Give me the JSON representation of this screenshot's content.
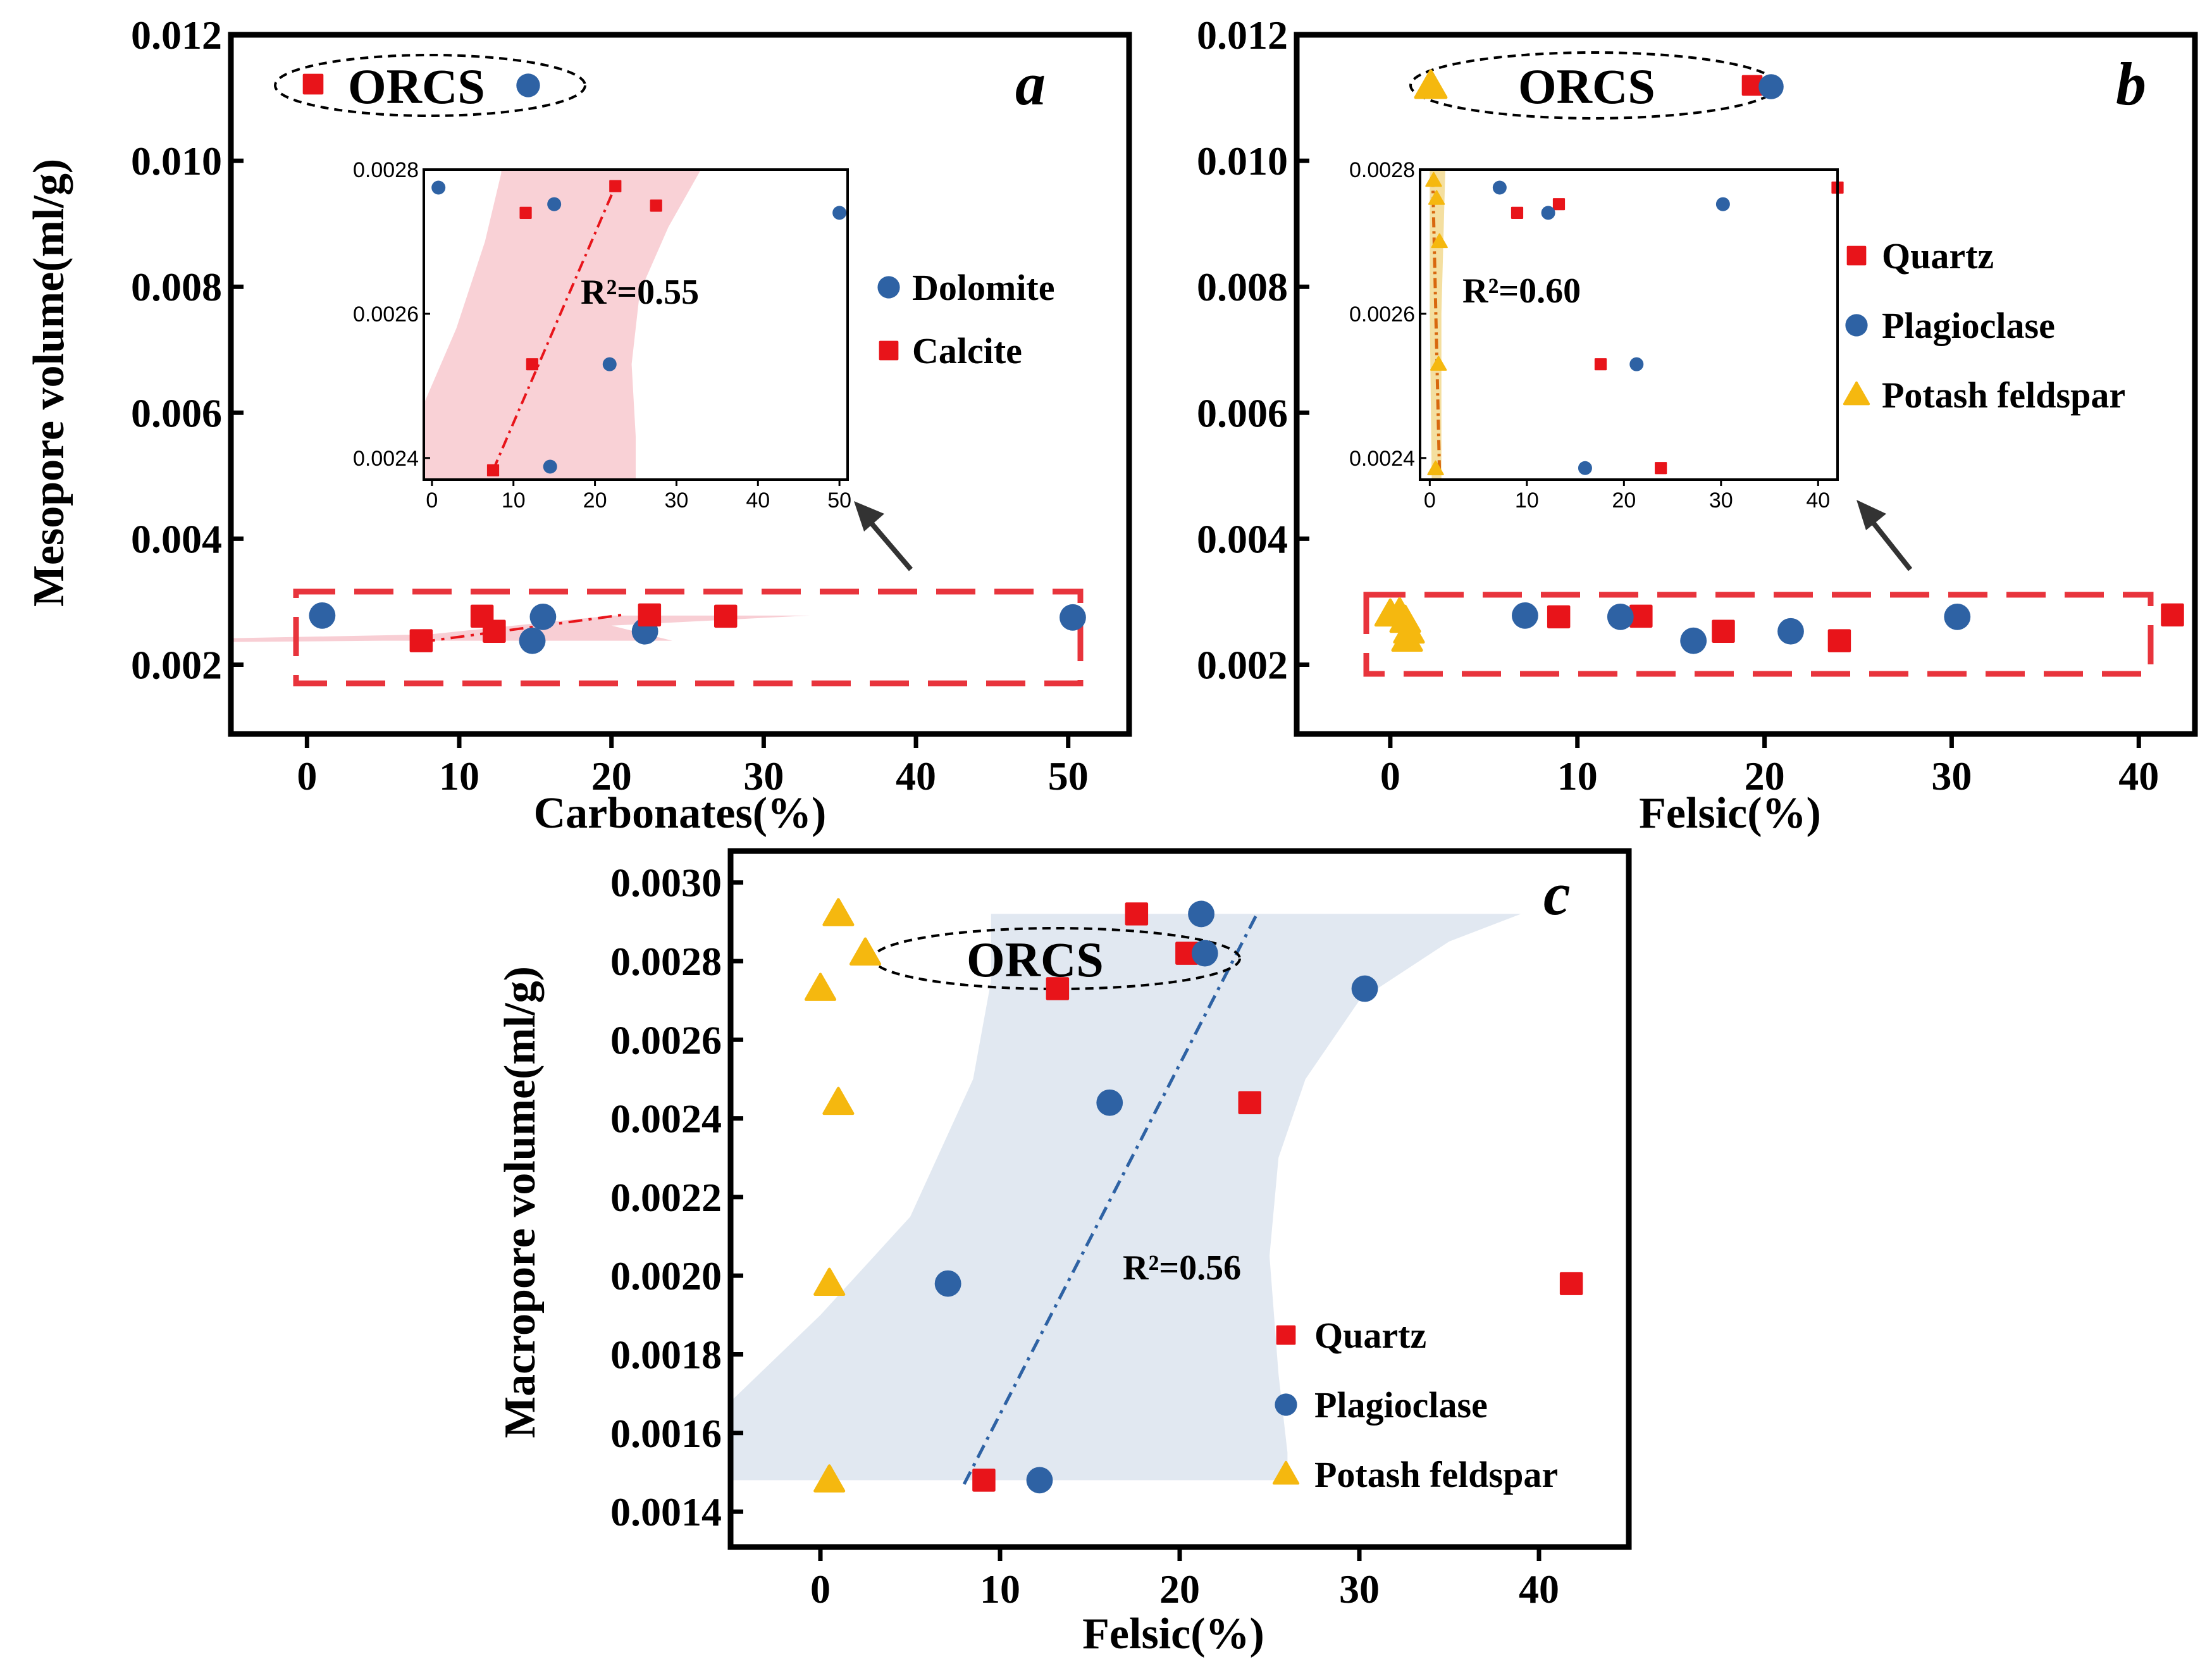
{
  "colors": {
    "quartz": "#e8141a",
    "calcite": "#e8141a",
    "dolomite": "#2e62a4",
    "plagioclase": "#2e62a4",
    "potash_feldspar": "#f5b80f",
    "band_red": "#f7c6cc",
    "band_blue": "#dce4ee",
    "band_yellow": "#f3dc96",
    "fit_red": "#e8141a",
    "fit_orange": "#d8680e",
    "fit_blue": "#2e62a4",
    "frame": "#000000",
    "highlight_box": "#e8343c"
  },
  "orcs_label": "ORCS",
  "chart_data": [
    {
      "id": "a",
      "panel_label": "a",
      "type": "scatter",
      "xlabel": "Carbonates(%)",
      "ylabel": "Mesopore volume(ml/g)",
      "xlim": [
        -5,
        54
      ],
      "ylim": [
        0.0009,
        0.012
      ],
      "xticks": [
        0,
        10,
        20,
        30,
        40,
        50
      ],
      "yticks": [
        0.002,
        0.004,
        0.006,
        0.008,
        0.01,
        0.012
      ],
      "ytick_labels": [
        "0.002",
        "0.004",
        "0.006",
        "0.008",
        "0.010",
        "0.012"
      ],
      "series": [
        {
          "name": "Dolomite",
          "marker": "circle",
          "color_key": "dolomite",
          "x": [
            1.0,
            15.5,
            14.8,
            22.2,
            50.3
          ],
          "y": [
            0.00278,
            0.00276,
            0.00238,
            0.00253,
            0.00275
          ]
        },
        {
          "name": "Calcite",
          "marker": "square",
          "color_key": "calcite",
          "x": [
            7.5,
            11.5,
            12.3,
            22.5,
            27.5
          ],
          "y": [
            0.00238,
            0.00277,
            0.00253,
            0.00279,
            0.00277
          ]
        }
      ],
      "orcs_markers": [
        "square",
        "circle"
      ],
      "inset": {
        "xlim": [
          -1,
          51
        ],
        "ylim": [
          0.00237,
          0.0028
        ],
        "xticks": [
          0,
          10,
          20,
          30,
          40,
          50
        ],
        "yticks": [
          0.0024,
          0.0026,
          0.0028
        ],
        "ytick_labels": [
          "0.0024",
          "0.0026",
          "0.0028"
        ],
        "series": [
          {
            "name": "Dolomite",
            "marker": "circle",
            "color_key": "dolomite",
            "x": [
              0.8,
              15.0,
              14.5,
              21.8,
              50.0
            ],
            "y": [
              0.002775,
              0.002752,
              0.002388,
              0.00253,
              0.00274
            ]
          },
          {
            "name": "Calcite",
            "marker": "square",
            "color_key": "calcite",
            "x": [
              7.5,
              11.5,
              12.3,
              22.5,
              27.5
            ],
            "y": [
              0.002383,
              0.00274,
              0.00253,
              0.002777,
              0.00275
            ]
          }
        ],
        "fit": {
          "x": [
            7.5,
            22.5
          ],
          "y": [
            0.002383,
            0.002777
          ],
          "color_key": "fit_red",
          "band_key": "band_red",
          "band_upper": [
            [
              0,
              0.002595
            ],
            [
              3,
              0.002665
            ],
            [
              6,
              0.00273
            ],
            [
              8.5,
              0.002775
            ],
            [
              8.5,
              0.0028
            ],
            [
              33,
              0.0028
            ],
            [
              28,
              0.0027
            ],
            [
              25,
              0.00262
            ],
            [
              24.5,
              0.00253
            ],
            [
              25,
              0.00242
            ],
            [
              25,
              0.00237
            ]
          ],
          "band_lower": [
            [
              0,
              0.00237
            ],
            [
              0,
              0.00244
            ]
          ]
        },
        "r2": "R²=0.55"
      },
      "main_fit": {
        "x": [
          7.5,
          21.0
        ],
        "y": [
          0.00236,
          0.0028
        ],
        "color_key": "fit_red"
      },
      "main_band": [
        [
          -5,
          0.00242
        ],
        [
          8,
          0.00248
        ],
        [
          20,
          0.00278
        ],
        [
          33,
          0.00278
        ],
        [
          20,
          0.00262
        ],
        [
          24,
          0.00238
        ],
        [
          5,
          0.00238
        ],
        [
          -5,
          0.00236
        ]
      ],
      "legend": [
        "Dolomite",
        "Calcite"
      ],
      "highlight_box": true
    },
    {
      "id": "b",
      "panel_label": "b",
      "type": "scatter",
      "xlabel": "Felsic(%)",
      "ylabel": "",
      "xlim": [
        -5,
        43
      ],
      "ylim": [
        0.0009,
        0.012
      ],
      "xticks": [
        0,
        10,
        20,
        30,
        40
      ],
      "yticks": [
        0.002,
        0.004,
        0.006,
        0.008,
        0.01,
        0.012
      ],
      "ytick_labels": [
        "0.002",
        "0.004",
        "0.006",
        "0.008",
        "0.010",
        "0.012"
      ],
      "series": [
        {
          "name": "Quartz",
          "marker": "square",
          "color_key": "quartz",
          "x": [
            9.0,
            13.4,
            17.8,
            24.0,
            41.8
          ],
          "y": [
            0.00276,
            0.00277,
            0.00253,
            0.00238,
            0.00279
          ]
        },
        {
          "name": "Plagioclase",
          "marker": "circle",
          "color_key": "plagioclase",
          "x": [
            7.2,
            12.3,
            16.2,
            21.4,
            30.3
          ],
          "y": [
            0.00278,
            0.00276,
            0.00238,
            0.00253,
            0.00276
          ]
        },
        {
          "name": "Potash feldspar",
          "marker": "triangle",
          "color_key": "potash_feldspar",
          "x": [
            0.0,
            0.5,
            0.8,
            1.0,
            0.9
          ],
          "y": [
            0.0028,
            0.00282,
            0.0027,
            0.00253,
            0.0024
          ]
        }
      ],
      "orcs_markers": [
        "triangle",
        "square",
        "circle"
      ],
      "inset": {
        "xlim": [
          -1,
          42
        ],
        "ylim": [
          0.00237,
          0.0028
        ],
        "xticks": [
          0,
          10,
          20,
          30,
          40
        ],
        "yticks": [
          0.0024,
          0.0026,
          0.0028
        ],
        "ytick_labels": [
          "0.0024",
          "0.0026",
          "0.0028"
        ],
        "series": [
          {
            "name": "Quartz",
            "marker": "square",
            "color_key": "quartz",
            "x": [
              9.0,
              13.3,
              17.6,
              23.8,
              42.0
            ],
            "y": [
              0.00274,
              0.002752,
              0.00253,
              0.002386,
              0.002775
            ]
          },
          {
            "name": "Plagioclase",
            "marker": "circle",
            "color_key": "plagioclase",
            "x": [
              7.2,
              12.2,
              16.0,
              21.3,
              30.2
            ],
            "y": [
              0.002775,
              0.00274,
              0.002386,
              0.00253,
              0.002752
            ]
          },
          {
            "name": "Potash feldspar",
            "marker": "triangle",
            "color_key": "potash_feldspar",
            "x": [
              0.4,
              0.7,
              1.0,
              0.9,
              0.6
            ],
            "y": [
              0.002785,
              0.00276,
              0.0027,
              0.00253,
              0.002385
            ]
          }
        ],
        "fit": {
          "x": [
            0.3,
            1.0
          ],
          "y": [
            0.00279,
            0.00238
          ],
          "color_key": "fit_orange",
          "band_key": "band_yellow"
        },
        "r2": "R²=0.60"
      },
      "main_fit": null,
      "legend": [
        "Quartz",
        "Plagioclase",
        "Potash feldspar"
      ],
      "highlight_box": true
    },
    {
      "id": "c",
      "panel_label": "c",
      "type": "scatter",
      "xlabel": "Felsic(%)",
      "ylabel": "Macropore volume(ml/g)",
      "xlim": [
        -5,
        45
      ],
      "ylim": [
        0.00131,
        0.00308
      ],
      "xticks": [
        0,
        10,
        20,
        30,
        40
      ],
      "yticks": [
        0.0014,
        0.0016,
        0.0018,
        0.002,
        0.0022,
        0.0024,
        0.0026,
        0.0028,
        0.003
      ],
      "ytick_labels": [
        "0.0014",
        "0.0016",
        "0.0018",
        "0.0020",
        "0.0022",
        "0.0024",
        "0.0026",
        "0.0028",
        "0.0030"
      ],
      "series": [
        {
          "name": "Quartz",
          "marker": "square",
          "color_key": "quartz",
          "x": [
            17.6,
            20.4,
            13.2,
            23.9,
            41.8,
            9.1
          ],
          "y": [
            0.00292,
            0.00282,
            0.00273,
            0.00244,
            0.00198,
            0.00148
          ]
        },
        {
          "name": "Plagioclase",
          "marker": "circle",
          "color_key": "plagioclase",
          "x": [
            21.2,
            21.4,
            30.3,
            16.1,
            7.1,
            12.2
          ],
          "y": [
            0.00292,
            0.00282,
            0.00273,
            0.00244,
            0.00198,
            0.00148
          ]
        },
        {
          "name": "Potash feldspar",
          "marker": "triangle",
          "color_key": "potash_feldspar",
          "x": [
            1.0,
            2.5,
            0.0,
            1.0,
            0.5,
            0.5
          ],
          "y": [
            0.00292,
            0.00282,
            0.00273,
            0.00244,
            0.00198,
            0.00148
          ]
        }
      ],
      "main_fit": {
        "x": [
          8.0,
          24.3
        ],
        "y": [
          0.00147,
          0.00292
        ],
        "color_key": "fit_blue"
      },
      "main_band": [
        [
          -5,
          0.00168
        ],
        [
          0,
          0.0019
        ],
        [
          5,
          0.00215
        ],
        [
          8.5,
          0.0025
        ],
        [
          9.5,
          0.00275
        ],
        [
          9.5,
          0.00292
        ],
        [
          39,
          0.00292
        ],
        [
          35,
          0.00285
        ],
        [
          30,
          0.0027
        ],
        [
          27,
          0.0025
        ],
        [
          25.5,
          0.0023
        ],
        [
          25,
          0.00205
        ],
        [
          25.5,
          0.00175
        ],
        [
          26,
          0.00155
        ],
        [
          26,
          0.00148
        ],
        [
          -5,
          0.00148
        ]
      ],
      "r2": "R²=0.56",
      "legend": [
        "Quartz",
        "Plagioclase",
        "Potash feldspar"
      ],
      "highlight_box": false
    }
  ]
}
